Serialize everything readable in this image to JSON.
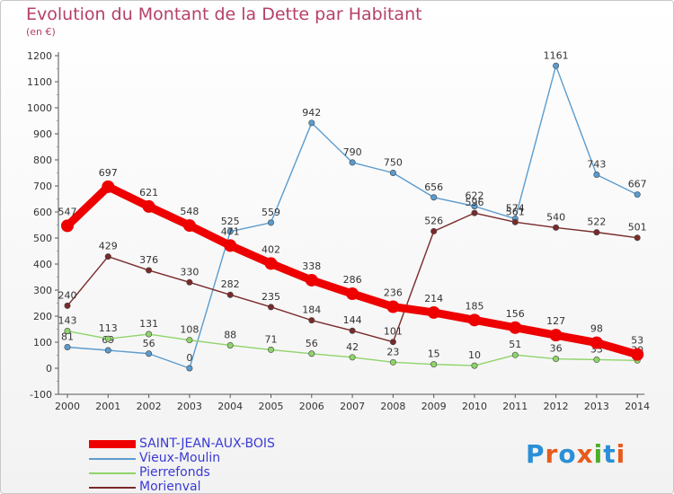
{
  "title": "Evolution du Montant de la Dette par Habitant",
  "subtitle": "(en €)",
  "logo": {
    "text": "Proxiti",
    "colors": [
      "#2a8fd6",
      "#e85a1e",
      "#2a8fd6",
      "#e85a1e",
      "#4caf2a",
      "#2a8fd6",
      "#e85a1e"
    ]
  },
  "chart_data": {
    "type": "line",
    "title": "Evolution du Montant de la Dette par Habitant",
    "subtitle": "(en €)",
    "x": [
      "2000",
      "2001",
      "2002",
      "2003",
      "2004",
      "2005",
      "2006",
      "2007",
      "2008",
      "2009",
      "2010",
      "2011",
      "2012",
      "2013",
      "2014"
    ],
    "ylim": [
      -100,
      1200
    ],
    "yticks": [
      -100,
      0,
      100,
      200,
      300,
      400,
      500,
      600,
      700,
      800,
      900,
      1000,
      1100,
      1200
    ],
    "grid": false,
    "legend_position": "bottom-left",
    "series": [
      {
        "name": "SAINT-JEAN-AUX-BOIS",
        "color": "#ee0000",
        "emphasis": true,
        "values": [
          547,
          697,
          621,
          548,
          471,
          402,
          338,
          286,
          236,
          214,
          185,
          156,
          127,
          98,
          53
        ]
      },
      {
        "name": "Vieux-Moulin",
        "color": "#5a9ccf",
        "emphasis": false,
        "values": [
          81,
          69,
          56,
          0,
          525,
          559,
          942,
          790,
          750,
          656,
          622,
          574,
          1161,
          743,
          667
        ]
      },
      {
        "name": "Pierrefonds",
        "color": "#8fd46a",
        "emphasis": false,
        "values": [
          143,
          113,
          131,
          108,
          88,
          71,
          56,
          42,
          23,
          15,
          10,
          51,
          36,
          33,
          30
        ]
      },
      {
        "name": "Morienval",
        "color": "#7a2a2a",
        "emphasis": false,
        "values": [
          240,
          429,
          376,
          330,
          282,
          235,
          184,
          144,
          101,
          526,
          596,
          561,
          540,
          522,
          501
        ]
      }
    ]
  }
}
